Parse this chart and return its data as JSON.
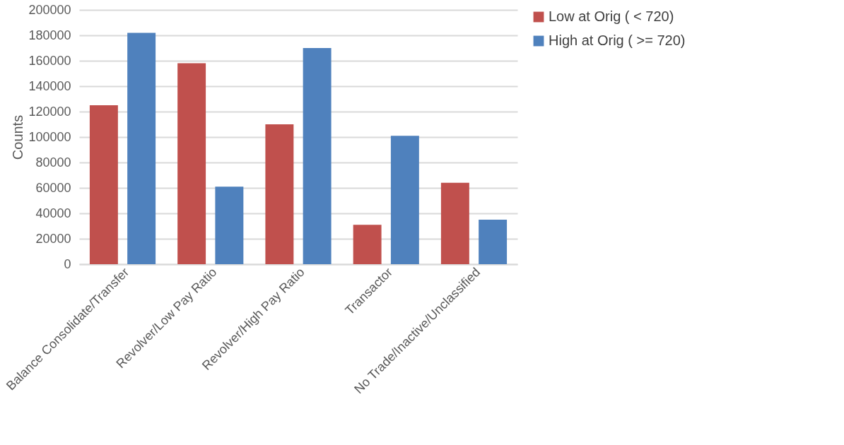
{
  "chart_data": {
    "type": "bar",
    "ylabel": "Counts",
    "categories": [
      "Balance Consolidate/Transfer",
      "Revolver/Low Pay Ratio",
      "Revolver/High Pay Ratio",
      "Transactor",
      "No Trade/Inactive/Unclassified"
    ],
    "series": [
      {
        "name": "Low at Orig ( < 720)",
        "color": "#c0504d",
        "values": [
          125000,
          158000,
          110000,
          31000,
          64000
        ]
      },
      {
        "name": "High at Orig ( >= 720)",
        "color": "#4f81bd",
        "values": [
          182000,
          61000,
          170000,
          101000,
          35000
        ]
      }
    ],
    "ylim": [
      0,
      200000
    ],
    "yticks": [
      0,
      20000,
      40000,
      60000,
      80000,
      100000,
      120000,
      140000,
      160000,
      180000,
      200000
    ],
    "grid": "y",
    "legend": "right"
  }
}
